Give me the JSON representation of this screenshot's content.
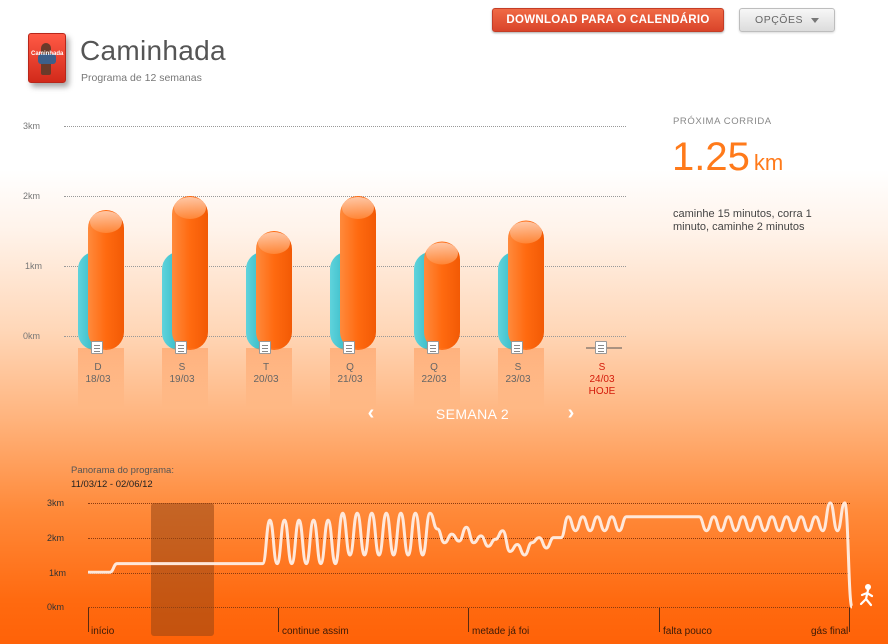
{
  "header": {
    "download_label": "DOWNLOAD PARA O CALENDÁRIO",
    "options_label": "OPÇÕES",
    "title": "Caminhada",
    "subtitle": "Programa de 12 semanas",
    "thumb_label": "Caminhada"
  },
  "next_run": {
    "label": "PRÓXIMA CORRIDA",
    "value": "1.25",
    "unit": "km",
    "description": "caminhe 15 minutos, corra 1 minuto, caminhe 2 minutos"
  },
  "week": {
    "label": "SEMANA 2",
    "y_ticks": [
      "3km",
      "2km",
      "1km",
      "0km"
    ],
    "days": [
      {
        "day": "D",
        "date": "18/03",
        "planned_km": 1.2,
        "actual_km": 1.8
      },
      {
        "day": "S",
        "date": "19/03",
        "planned_km": 1.2,
        "actual_km": 2.0
      },
      {
        "day": "T",
        "date": "20/03",
        "planned_km": 1.2,
        "actual_km": 1.5
      },
      {
        "day": "Q",
        "date": "21/03",
        "planned_km": 1.2,
        "actual_km": 2.0
      },
      {
        "day": "Q",
        "date": "22/03",
        "planned_km": 1.2,
        "actual_km": 1.35
      },
      {
        "day": "S",
        "date": "23/03",
        "planned_km": 1.2,
        "actual_km": 1.65
      },
      {
        "day": "S",
        "date": "24/03",
        "today_label": "HOJE",
        "planned_km": null,
        "actual_km": null
      }
    ],
    "colors": {
      "planned": "#3ec6cf",
      "actual": "#ff6a10",
      "today": "#d41a0a"
    }
  },
  "overview": {
    "label": "Panorama do programa:",
    "range": "11/03/12 - 02/06/12",
    "y_ticks": [
      "3km",
      "2km",
      "1km",
      "0km"
    ],
    "phases": [
      "início",
      "continue assim",
      "metade já foi",
      "falta pouco",
      "gás final"
    ]
  },
  "chart_data": {
    "type": "line",
    "title": "",
    "xlabel": "",
    "ylabel": "",
    "ylim": [
      0,
      3
    ],
    "series": [
      {
        "values": [
          1,
          1,
          1,
          1,
          1.25,
          1.25,
          1.25,
          1.25,
          1.25,
          1.25,
          1.25,
          1.25,
          1.25,
          1.25,
          1.25,
          1.25,
          1.25,
          1.25,
          1.25,
          1.25,
          1.25,
          1.25,
          1.25,
          1.25,
          1.25,
          2.5,
          1.25,
          2.5,
          1.25,
          2.5,
          1.25,
          2.5,
          1.25,
          2.5,
          1.25,
          2.7,
          1.5,
          2.7,
          1.5,
          2.7,
          1.5,
          2.7,
          1.5,
          2.7,
          1.5,
          2.7,
          1.5,
          2.7,
          2.25,
          1.85,
          2.1,
          1.9,
          2.3,
          1.85,
          2.05,
          1.75,
          1.95,
          2.2,
          1.6,
          1.8,
          1.5,
          1.85,
          2.0,
          1.7,
          2.0,
          2.0,
          2.6,
          2.2,
          2.6,
          2.2,
          2.6,
          2.2,
          2.6,
          2.2,
          2.6,
          2.6,
          2.6,
          2.6,
          2.6,
          2.6,
          2.6,
          2.6,
          2.6,
          2.6,
          2.6,
          2.2,
          2.6,
          2.2,
          2.6,
          2.2,
          2.6,
          2.2,
          2.6,
          2.2,
          2.6,
          2.2,
          2.6,
          2.2,
          2.6,
          2.2,
          2.6,
          2.2,
          3.0,
          2.2,
          3.0,
          0.0
        ]
      }
    ]
  }
}
